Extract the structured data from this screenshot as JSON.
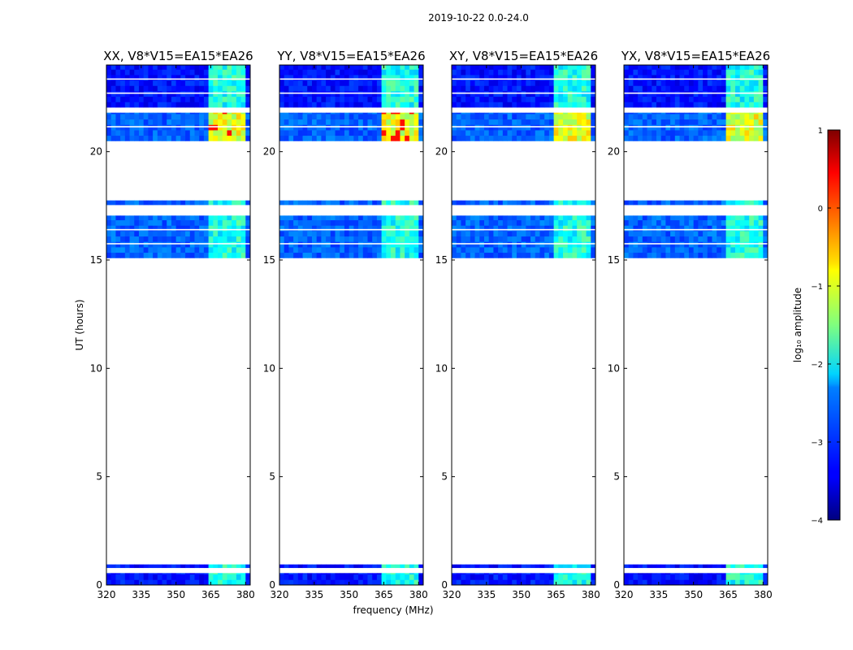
{
  "chart_data": {
    "type": "heatmap",
    "title": "2019-10-22 0.0-24.0",
    "xlabel": "frequency (MHz)",
    "ylabel": "UT (hours)",
    "xlim": [
      320,
      382
    ],
    "ylim": [
      0,
      24
    ],
    "xticks": [
      320,
      335,
      350,
      365,
      380
    ],
    "yticks": [
      0,
      5,
      10,
      15,
      20
    ],
    "panels": [
      {
        "label": "XX, V8*V15=EA15*EA26"
      },
      {
        "label": "YY, V8*V15=EA15*EA26"
      },
      {
        "label": "XY, V8*V15=EA15*EA26"
      },
      {
        "label": "YX, V8*V15=EA15*EA26"
      }
    ],
    "data_bands_ut": [
      [
        0.0,
        0.55
      ],
      [
        0.8,
        0.95
      ],
      [
        15.1,
        17.05
      ],
      [
        17.55,
        17.75
      ],
      [
        20.5,
        21.8
      ],
      [
        22.05,
        24.0
      ]
    ],
    "bright_region_mhz": [
      363,
      380
    ],
    "baseline_log10_amplitude": -3.3,
    "bright_region_log10_amplitude": -1.2,
    "peak_log10_amplitude": 0.3,
    "colorbar": {
      "label": "log₁₀ amplitude",
      "min": -4,
      "max": 1,
      "ticks": [
        "1",
        "0",
        "−1",
        "−2",
        "−3",
        "−4"
      ]
    }
  }
}
